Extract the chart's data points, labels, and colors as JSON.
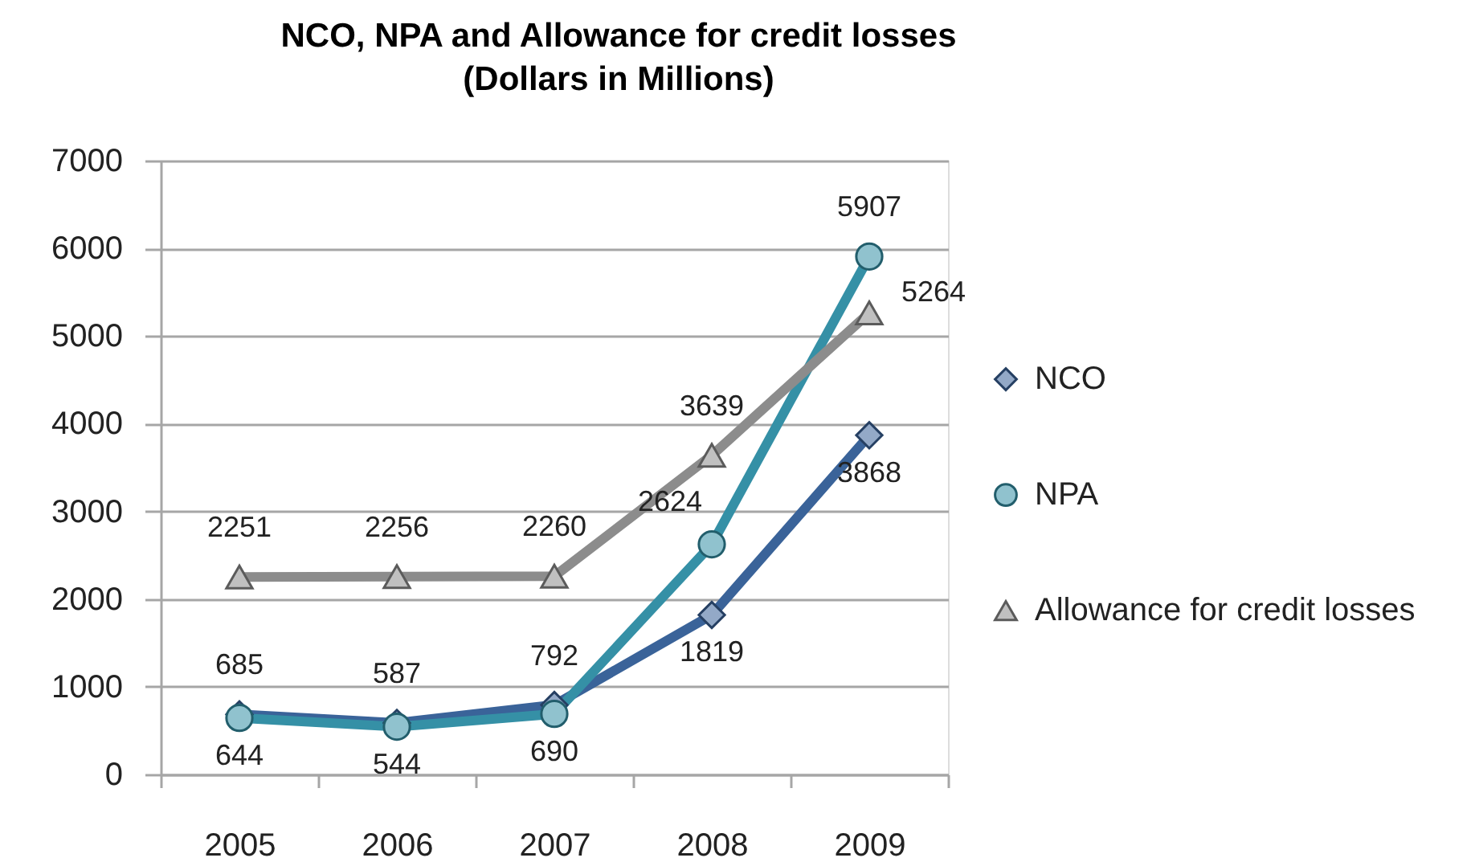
{
  "chart_data": {
    "type": "line",
    "title": "NCO, NPA and Allowance for credit losses",
    "subtitle": "(Dollars in Millions)",
    "categories": [
      "2005",
      "2006",
      "2007",
      "2008",
      "2009"
    ],
    "series": [
      {
        "name": "NCO",
        "color": "#3a6399",
        "marker": "diamond",
        "values": [
          685,
          587,
          792,
          1819,
          3868
        ]
      },
      {
        "name": "NPA",
        "color": "#3590a6",
        "marker": "circle",
        "values": [
          644,
          544,
          690,
          2624,
          5907
        ]
      },
      {
        "name": "Allowance for credit losses",
        "color": "#8c8c8c",
        "marker": "triangle",
        "values": [
          2251,
          2256,
          2260,
          3639,
          5264
        ]
      }
    ],
    "ylim": [
      0,
      7000
    ],
    "yticks": [
      0,
      1000,
      2000,
      3000,
      4000,
      5000,
      6000,
      7000
    ],
    "grid": "y",
    "legend": "right",
    "data_labels": true
  }
}
